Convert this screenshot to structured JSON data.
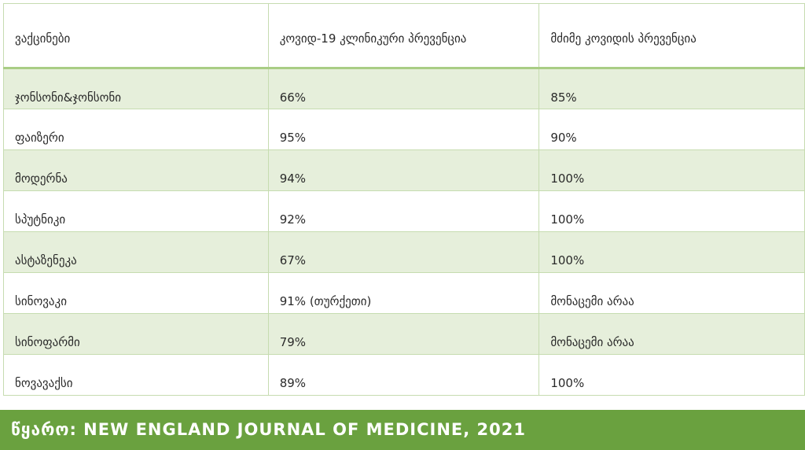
{
  "table": {
    "headers": [
      "ვაქცინები",
      "კოვიდ-19 კლინიკური პრევენცია",
      "მძიმე კოვიდის პრევენცია"
    ],
    "rows": [
      [
        "ჯონსონი&ჯონსონი",
        "66%",
        "85%"
      ],
      [
        "ფაიზერი",
        "95%",
        "90%"
      ],
      [
        "მოდერნა",
        "94%",
        "100%"
      ],
      [
        "სპუტნიკი",
        "92%",
        "100%"
      ],
      [
        "ასტაზენეკა",
        "67%",
        "100%"
      ],
      [
        "სინოვაკი",
        "91% (თურქეთი)",
        "მონაცემი არაა"
      ],
      [
        "სინოფარმი",
        "79%",
        "მონაცემი არაა"
      ],
      [
        "ნოვავაქსი",
        "89%",
        "100%"
      ]
    ]
  },
  "footer": {
    "source_text": "წყარო: NEW ENGLAND JOURNAL OF MEDICINE, 2021"
  },
  "colors": {
    "accent_green": "#6aa13f",
    "row_shade": "#e6efdb",
    "border": "#c6dcb0"
  }
}
